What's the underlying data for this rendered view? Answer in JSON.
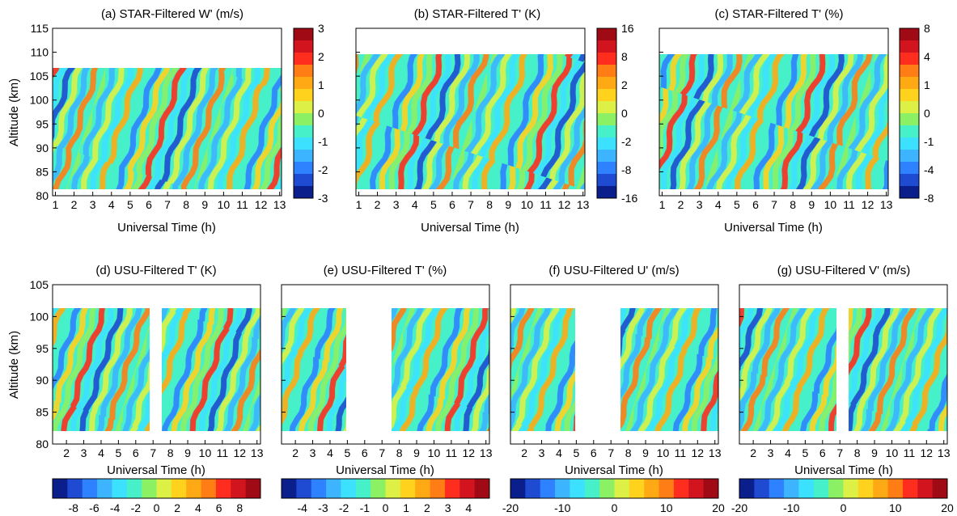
{
  "chart_data": [
    {
      "type": "heatmap",
      "title": "(a) STAR-Filtered W' (m/s)",
      "xlabel": "Universal Time (h)",
      "ylabel": "Altitude (km)",
      "xlim": [
        0.85,
        13.1
      ],
      "ylim": [
        80,
        115
      ],
      "xticks": [
        "1",
        "2",
        "3",
        "4",
        "5",
        "6",
        "7",
        "8",
        "9",
        "10",
        "11",
        "12",
        "13"
      ],
      "yticks": [
        "80",
        "85",
        "90",
        "95",
        "100",
        "105",
        "110",
        "115"
      ],
      "data_extent": {
        "x": [
          0.85,
          13.1
        ],
        "y": [
          82,
          107
        ]
      },
      "colorbar": {
        "range": [
          -3,
          3
        ],
        "ticks": [
          "3",
          "2",
          "1",
          "0",
          "-1",
          "-2",
          "-3"
        ]
      }
    },
    {
      "type": "heatmap",
      "title": "(b) STAR-Filtered T' (K)",
      "xlabel": "Universal Time (h)",
      "xlim": [
        0.85,
        13.1
      ],
      "ylim": [
        80,
        115
      ],
      "xticks": [
        "1",
        "2",
        "3",
        "4",
        "5",
        "6",
        "7",
        "8",
        "9",
        "10",
        "11",
        "12",
        "13"
      ],
      "data_extent": {
        "x": [
          0.85,
          13.1
        ],
        "y": [
          82,
          110
        ]
      },
      "colorbar": {
        "range": [
          -16,
          16
        ],
        "ticks": [
          "16",
          "8",
          "2",
          "0",
          "-2",
          "-8",
          "-16"
        ]
      }
    },
    {
      "type": "heatmap",
      "title": "(c) STAR-Filtered T' (%)",
      "xlabel": "Universal Time (h)",
      "xlim": [
        0.85,
        13.1
      ],
      "ylim": [
        80,
        115
      ],
      "xticks": [
        "1",
        "2",
        "3",
        "4",
        "5",
        "6",
        "7",
        "8",
        "9",
        "10",
        "11",
        "12",
        "13"
      ],
      "data_extent": {
        "x": [
          0.85,
          13.1
        ],
        "y": [
          82,
          110
        ]
      },
      "colorbar": {
        "range": [
          -8,
          8
        ],
        "ticks": [
          "8",
          "4",
          "1",
          "0",
          "-1",
          "-4",
          "-8"
        ]
      }
    },
    {
      "type": "heatmap",
      "title": "(d) USU-Filtered T' (K)",
      "xlabel": "Universal Time (h)",
      "ylabel": "Altitude (km)",
      "xlim": [
        1.2,
        13.2
      ],
      "ylim": [
        80,
        105
      ],
      "xticks": [
        "2",
        "3",
        "4",
        "5",
        "6",
        "7",
        "8",
        "9",
        "10",
        "11",
        "12",
        "13"
      ],
      "yticks": [
        "80",
        "85",
        "90",
        "95",
        "100",
        "105"
      ],
      "data_extent": {
        "x": [
          [
            1.2,
            7.0
          ],
          [
            7.7,
            13.2
          ]
        ],
        "y": [
          82,
          101.5
        ]
      },
      "colorbar": {
        "range": [
          -10,
          10
        ],
        "ticks": [
          "-8",
          "-6",
          "-4",
          "-2",
          "0",
          "2",
          "4",
          "6",
          "8"
        ]
      }
    },
    {
      "type": "heatmap",
      "title": "(e) USU-Filtered T' (%)",
      "xlabel": "Universal Time (h)",
      "xlim": [
        1.2,
        13.2
      ],
      "ylim": [
        80,
        105
      ],
      "xticks": [
        "2",
        "3",
        "4",
        "5",
        "6",
        "7",
        "8",
        "9",
        "10",
        "11",
        "12",
        "13"
      ],
      "data_extent": {
        "x": [
          [
            1.2,
            5.0
          ],
          [
            7.7,
            13.2
          ]
        ],
        "y": [
          82,
          101.5
        ]
      },
      "colorbar": {
        "range": [
          -5,
          5
        ],
        "ticks": [
          "-4",
          "-3",
          "-2",
          "-1",
          "0",
          "1",
          "2",
          "3",
          "4"
        ]
      }
    },
    {
      "type": "heatmap",
      "title": "(f) USU-Filtered U' (m/s)",
      "xlabel": "Universal Time (h)",
      "xlim": [
        1.2,
        13.2
      ],
      "ylim": [
        80,
        105
      ],
      "xticks": [
        "2",
        "3",
        "4",
        "5",
        "6",
        "7",
        "8",
        "9",
        "10",
        "11",
        "12",
        "13"
      ],
      "data_extent": {
        "x": [
          [
            1.2,
            5.0
          ],
          [
            7.7,
            13.2
          ]
        ],
        "y": [
          82,
          101.5
        ]
      },
      "colorbar": {
        "range": [
          -20,
          20
        ],
        "ticks": [
          "-20",
          "-10",
          "0",
          "10",
          "20"
        ]
      }
    },
    {
      "type": "heatmap",
      "title": "(g) USU-Filtered V' (m/s)",
      "xlabel": "Universal Time (h)",
      "xlim": [
        1.2,
        13.2
      ],
      "ylim": [
        80,
        105
      ],
      "xticks": [
        "2",
        "3",
        "4",
        "5",
        "6",
        "7",
        "8",
        "9",
        "10",
        "11",
        "12",
        "13"
      ],
      "data_extent": {
        "x": [
          [
            1.2,
            7.0
          ],
          [
            7.7,
            13.2
          ]
        ],
        "y": [
          82,
          101.5
        ]
      },
      "colorbar": {
        "range": [
          -20,
          20
        ],
        "ticks": [
          "-20",
          "-10",
          "0",
          "10",
          "20"
        ]
      }
    }
  ],
  "palette": [
    "#0a1e8c",
    "#1e4bd2",
    "#2f82ff",
    "#3cb4ff",
    "#3ce1ff",
    "#46f0c8",
    "#8cf064",
    "#dcf046",
    "#ffd21e",
    "#ffaa14",
    "#ff7d14",
    "#ff2d1e",
    "#d2141e",
    "#a00a14"
  ]
}
